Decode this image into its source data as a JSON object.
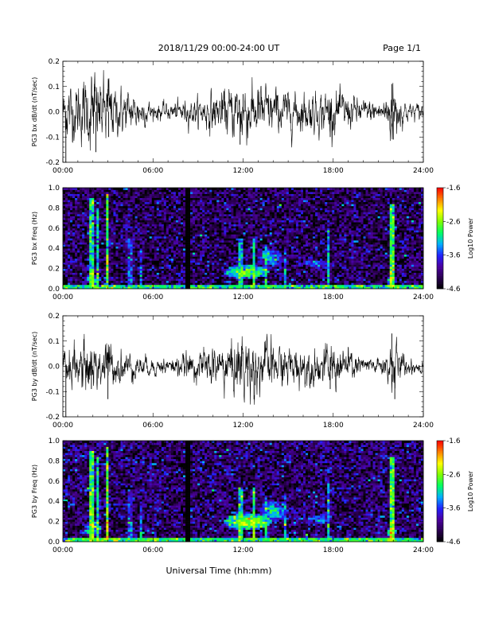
{
  "header": {
    "date_range": "2018/11/29  00:00-24:00 UT",
    "page": "Page 1/1"
  },
  "footer": {
    "xlabel": "Universal Time (hh:mm)"
  },
  "colors": {
    "trace": "#000000",
    "colormap": [
      "#000000",
      "#2a0050",
      "#4b00a0",
      "#2020ff",
      "#00b0ff",
      "#00ff60",
      "#80ff00",
      "#ffff00",
      "#ff8000",
      "#ff0000"
    ]
  },
  "chart_data": [
    {
      "type": "line",
      "ylabel": "PG3 bx dB/dt (nT/sec)",
      "xlim": [
        0,
        24
      ],
      "ylim": [
        -0.2,
        0.2
      ],
      "x_ticks": [
        0,
        6,
        12,
        18,
        24
      ],
      "x_tick_labels": [
        "00:00",
        "06:00",
        "12:00",
        "18:00",
        "24:00"
      ],
      "y_ticks": [
        -0.2,
        -0.1,
        0.0,
        0.1,
        0.2
      ],
      "y_tick_labels": [
        "-0.2",
        "-0.1",
        "0.0",
        "0.1",
        "0.2"
      ],
      "envelope": {
        "x": [
          0,
          0.3,
          1.0,
          1.6,
          2.0,
          2.3,
          2.6,
          3.0,
          3.4,
          4.0,
          5.0,
          6.0,
          7.0,
          8.0,
          9.0,
          10.0,
          11.0,
          11.6,
          12.0,
          12.5,
          13.0,
          13.5,
          14.0,
          15.0,
          16.0,
          17.0,
          17.7,
          18.0,
          18.5,
          19.0,
          20.0,
          21.0,
          21.6,
          22.0,
          22.3,
          23.0,
          24.0
        ],
        "amplitude": [
          0.04,
          0.05,
          0.05,
          0.06,
          0.08,
          0.05,
          0.06,
          0.07,
          0.04,
          0.04,
          0.03,
          0.015,
          0.015,
          0.02,
          0.025,
          0.035,
          0.04,
          0.05,
          0.065,
          0.045,
          0.05,
          0.045,
          0.04,
          0.035,
          0.035,
          0.035,
          0.04,
          0.04,
          0.035,
          0.03,
          0.02,
          0.02,
          0.03,
          0.07,
          0.035,
          0.015,
          0.015
        ]
      },
      "spikes": [
        {
          "x": 0.2,
          "y": -0.21
        },
        {
          "x": 2.1,
          "y": 0.11
        },
        {
          "x": 2.2,
          "y": -0.16
        },
        {
          "x": 3.0,
          "y": 0.09
        },
        {
          "x": 3.05,
          "y": -0.1
        },
        {
          "x": 11.8,
          "y": -0.13
        },
        {
          "x": 12.0,
          "y": 0.07
        },
        {
          "x": 17.8,
          "y": -0.1
        },
        {
          "x": 21.9,
          "y": 0.11
        },
        {
          "x": 22.0,
          "y": -0.11
        }
      ]
    },
    {
      "type": "heatmap",
      "ylabel": "PG3 bx Freq (Hz)",
      "colorbar_label": "Log10 Power",
      "xlim": [
        0,
        24
      ],
      "ylim": [
        0.0,
        1.0
      ],
      "x_ticks": [
        0,
        6,
        12,
        18,
        24
      ],
      "x_tick_labels": [
        "00:00",
        "06:00",
        "12:00",
        "18:00",
        "24:00"
      ],
      "y_ticks": [
        0.0,
        0.2,
        0.4,
        0.6,
        0.8,
        1.0
      ],
      "y_tick_labels": [
        "0.0",
        "0.2",
        "0.4",
        "0.6",
        "0.8",
        "1.0"
      ],
      "colorbar_range": [
        -4.6,
        -1.6
      ],
      "colorbar_ticks": [
        -4.6,
        -3.6,
        -2.6,
        -1.6
      ],
      "colorbar_tick_labels": [
        "-4.6",
        "-3.6",
        "-2.6",
        "-1.6"
      ],
      "background_level": -4.25,
      "low_freq_band": {
        "upto_hz": 0.04,
        "level": -3.0
      },
      "data_gap": {
        "x": [
          8.15,
          8.45
        ]
      },
      "vertical_streaks": [
        {
          "x": 1.9,
          "level": -3.0,
          "upto_hz": 0.9
        },
        {
          "x": 2.3,
          "level": -3.2,
          "upto_hz": 0.8
        },
        {
          "x": 3.0,
          "level": -2.9,
          "upto_hz": 0.95
        },
        {
          "x": 4.5,
          "level": -3.8,
          "upto_hz": 0.5
        },
        {
          "x": 5.2,
          "level": -3.8,
          "upto_hz": 0.4
        },
        {
          "x": 11.8,
          "level": -3.3,
          "upto_hz": 0.5
        },
        {
          "x": 12.7,
          "level": -3.1,
          "upto_hz": 0.5
        },
        {
          "x": 13.5,
          "level": -3.3,
          "upto_hz": 0.45
        },
        {
          "x": 14.8,
          "level": -3.5,
          "upto_hz": 0.4
        },
        {
          "x": 17.7,
          "level": -3.3,
          "upto_hz": 0.6
        },
        {
          "x": 21.9,
          "level": -2.9,
          "upto_hz": 0.85
        }
      ],
      "hotspots": [
        {
          "x": 12.2,
          "y": 0.17,
          "level": -2.7,
          "width_h": 3.0,
          "height_hz": 0.14
        },
        {
          "x": 13.8,
          "y": 0.3,
          "level": -3.2,
          "width_h": 1.8,
          "height_hz": 0.2
        },
        {
          "x": 17.0,
          "y": 0.25,
          "level": -3.4,
          "width_h": 1.8,
          "height_hz": 0.1
        },
        {
          "x": 2.0,
          "y": 0.1,
          "level": -3.0,
          "width_h": 1.2,
          "height_hz": 0.1
        },
        {
          "x": 21.9,
          "y": 0.08,
          "level": -2.8,
          "width_h": 0.6,
          "height_hz": 0.1
        }
      ]
    },
    {
      "type": "line",
      "ylabel": "PG3 by dB/dt (nT/sec)",
      "xlim": [
        0,
        24
      ],
      "ylim": [
        -0.2,
        0.2
      ],
      "x_ticks": [
        0,
        6,
        12,
        18,
        24
      ],
      "x_tick_labels": [
        "00:00",
        "06:00",
        "12:00",
        "18:00",
        "24:00"
      ],
      "y_ticks": [
        -0.2,
        -0.1,
        0.0,
        0.1,
        0.2
      ],
      "y_tick_labels": [
        "-0.2",
        "-0.1",
        "0.0",
        "0.1",
        "0.2"
      ],
      "envelope": {
        "x": [
          0,
          0.3,
          1.0,
          1.6,
          2.0,
          2.3,
          2.6,
          3.0,
          3.4,
          4.0,
          5.0,
          6.0,
          7.0,
          8.0,
          9.0,
          10.0,
          11.0,
          11.6,
          12.0,
          12.5,
          13.0,
          13.5,
          14.0,
          15.0,
          16.0,
          17.0,
          17.7,
          18.0,
          18.5,
          19.0,
          20.0,
          21.0,
          21.6,
          22.0,
          22.3,
          23.0,
          24.0
        ],
        "amplitude": [
          0.03,
          0.035,
          0.04,
          0.045,
          0.05,
          0.04,
          0.045,
          0.05,
          0.03,
          0.03,
          0.02,
          0.015,
          0.015,
          0.02,
          0.025,
          0.035,
          0.045,
          0.05,
          0.06,
          0.05,
          0.05,
          0.045,
          0.04,
          0.035,
          0.035,
          0.03,
          0.04,
          0.04,
          0.035,
          0.03,
          0.015,
          0.015,
          0.025,
          0.06,
          0.03,
          0.015,
          0.015
        ]
      },
      "spikes": [
        {
          "x": 0.2,
          "y": -0.21
        },
        {
          "x": 1.9,
          "y": -0.09
        },
        {
          "x": 2.2,
          "y": 0.05
        },
        {
          "x": 3.0,
          "y": -0.13
        },
        {
          "x": 11.9,
          "y": 0.08
        },
        {
          "x": 12.3,
          "y": -0.08
        },
        {
          "x": 17.8,
          "y": -0.09
        },
        {
          "x": 21.9,
          "y": 0.13
        },
        {
          "x": 22.1,
          "y": -0.13
        }
      ]
    },
    {
      "type": "heatmap",
      "ylabel": "PG3 by Freq (Hz)",
      "colorbar_label": "Log10 Power",
      "xlim": [
        0,
        24
      ],
      "ylim": [
        0.0,
        1.0
      ],
      "x_ticks": [
        0,
        6,
        12,
        18,
        24
      ],
      "x_tick_labels": [
        "00:00",
        "06:00",
        "12:00",
        "18:00",
        "24:00"
      ],
      "y_ticks": [
        0.0,
        0.2,
        0.4,
        0.6,
        0.8,
        1.0
      ],
      "y_tick_labels": [
        "0.0",
        "0.2",
        "0.4",
        "0.6",
        "0.8",
        "1.0"
      ],
      "colorbar_range": [
        -4.6,
        -1.6
      ],
      "colorbar_ticks": [
        -4.6,
        -3.6,
        -2.6,
        -1.6
      ],
      "colorbar_tick_labels": [
        "-4.6",
        "-3.6",
        "-2.6",
        "-1.6"
      ],
      "background_level": -4.2,
      "low_freq_band": {
        "upto_hz": 0.05,
        "level": -2.9
      },
      "data_gap": {
        "x": [
          8.15,
          8.45
        ]
      },
      "vertical_streaks": [
        {
          "x": 1.9,
          "level": -2.9,
          "upto_hz": 0.9
        },
        {
          "x": 2.3,
          "level": -3.1,
          "upto_hz": 0.85
        },
        {
          "x": 3.0,
          "level": -2.8,
          "upto_hz": 0.95
        },
        {
          "x": 4.5,
          "level": -3.7,
          "upto_hz": 0.5
        },
        {
          "x": 5.2,
          "level": -3.7,
          "upto_hz": 0.4
        },
        {
          "x": 11.8,
          "level": -3.1,
          "upto_hz": 0.55
        },
        {
          "x": 12.7,
          "level": -2.9,
          "upto_hz": 0.55
        },
        {
          "x": 13.5,
          "level": -3.2,
          "upto_hz": 0.45
        },
        {
          "x": 14.8,
          "level": -3.5,
          "upto_hz": 0.4
        },
        {
          "x": 17.7,
          "level": -3.3,
          "upto_hz": 0.6
        },
        {
          "x": 21.9,
          "level": -2.8,
          "upto_hz": 0.85
        }
      ],
      "hotspots": [
        {
          "x": 12.3,
          "y": 0.2,
          "level": -2.5,
          "width_h": 3.2,
          "height_hz": 0.16
        },
        {
          "x": 14.0,
          "y": 0.3,
          "level": -3.1,
          "width_h": 2.0,
          "height_hz": 0.2
        },
        {
          "x": 17.0,
          "y": 0.22,
          "level": -3.4,
          "width_h": 2.0,
          "height_hz": 0.1
        },
        {
          "x": 2.0,
          "y": 0.12,
          "level": -2.9,
          "width_h": 1.2,
          "height_hz": 0.12
        },
        {
          "x": 21.9,
          "y": 0.1,
          "level": -2.7,
          "width_h": 0.6,
          "height_hz": 0.1
        }
      ]
    }
  ]
}
